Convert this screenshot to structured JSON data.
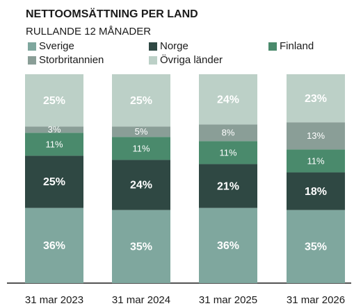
{
  "chart_data": {
    "type": "stacked_bar",
    "title": "NETTOOMSÄTTNING PER LAND",
    "subtitle": "RULLANDE 12 MÅNADER",
    "categories": [
      "31 mar 2023",
      "31 mar 2024",
      "31 mar 2025",
      "31 mar 2026"
    ],
    "series": [
      {
        "name": "Sverige",
        "color": "#7fa79e",
        "values": [
          36,
          35,
          36,
          35
        ],
        "value_labels": [
          "36%",
          "35%",
          "36%",
          "35%"
        ]
      },
      {
        "name": "Norge",
        "color": "#2f4843",
        "values": [
          25,
          24,
          21,
          18
        ],
        "value_labels": [
          "25%",
          "24%",
          "21%",
          "18%"
        ]
      },
      {
        "name": "Finland",
        "color": "#4a8a6c",
        "values": [
          11,
          11,
          11,
          11
        ],
        "value_labels": [
          "11%",
          "11%",
          "11%",
          "11%"
        ]
      },
      {
        "name": "Storbritannien",
        "color": "#8a9e97",
        "values": [
          3,
          5,
          8,
          13
        ],
        "value_labels": [
          "3%",
          "5%",
          "8%",
          "13%"
        ]
      },
      {
        "name": "Övriga länder",
        "color": "#bcd0c7",
        "values": [
          25,
          25,
          24,
          23
        ],
        "value_labels": [
          "25%",
          "25%",
          "24%",
          "23%"
        ]
      }
    ]
  }
}
